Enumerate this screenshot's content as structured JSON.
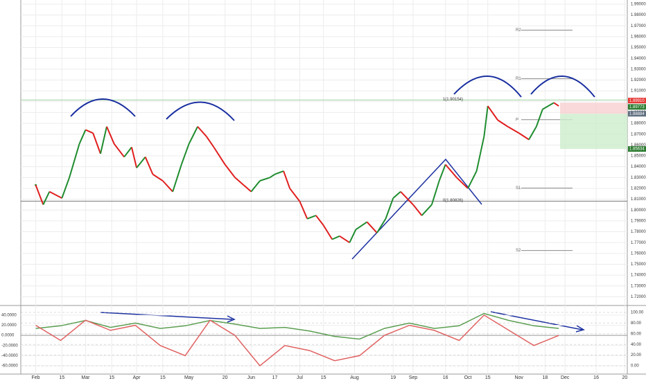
{
  "chart_data": [
    {
      "type": "line",
      "xlim": [
        -1.2,
        47.5
      ],
      "ylim": [
        1.7126,
        1.9938
      ],
      "grid": true,
      "xticks": [
        {
          "value": 0,
          "label": "Feb"
        },
        {
          "value": 2.1,
          "label": "15"
        },
        {
          "value": 4,
          "label": "Mar"
        },
        {
          "value": 6.1,
          "label": "15"
        },
        {
          "value": 8.1,
          "label": "Apr"
        },
        {
          "value": 10.2,
          "label": "15"
        },
        {
          "value": 12.3,
          "label": "May"
        },
        {
          "value": 15.2,
          "label": "20"
        },
        {
          "value": 17.3,
          "label": "Jun"
        },
        {
          "value": 19.2,
          "label": "17"
        },
        {
          "value": 21.2,
          "label": "Jul"
        },
        {
          "value": 23.1,
          "label": "15"
        },
        {
          "value": 25.6,
          "label": "Aug"
        },
        {
          "value": 28.7,
          "label": "19"
        },
        {
          "value": 30.3,
          "label": "Sep"
        },
        {
          "value": 32.9,
          "label": "16"
        },
        {
          "value": 34.7,
          "label": "Oct"
        },
        {
          "value": 36.3,
          "label": "15"
        },
        {
          "value": 38.8,
          "label": "Nov"
        },
        {
          "value": 40.9,
          "label": "18"
        },
        {
          "value": 42.5,
          "label": "Dec"
        },
        {
          "value": 45,
          "label": "16"
        },
        {
          "value": 47.3,
          "label": "20"
        }
      ],
      "yticks": [
        {
          "value": 1.72,
          "label": "1.72000"
        },
        {
          "value": 1.73,
          "label": "1.73000"
        },
        {
          "value": 1.74,
          "label": "1.74000"
        },
        {
          "value": 1.75,
          "label": "1.75000"
        },
        {
          "value": 1.76,
          "label": "1.76000"
        },
        {
          "value": 1.77,
          "label": "1.77000"
        },
        {
          "value": 1.78,
          "label": "1.78000"
        },
        {
          "value": 1.79,
          "label": "1.79000"
        },
        {
          "value": 1.8,
          "label": "1.80000"
        },
        {
          "value": 1.81,
          "label": "1.81000"
        },
        {
          "value": 1.82,
          "label": "1.82000"
        },
        {
          "value": 1.83,
          "label": "1.83000"
        },
        {
          "value": 1.84,
          "label": "1.84000"
        },
        {
          "value": 1.85,
          "label": "1.85000"
        },
        {
          "value": 1.86,
          "label": "1.86000"
        },
        {
          "value": 1.87,
          "label": "1.87000"
        },
        {
          "value": 1.88,
          "label": "1.88000"
        },
        {
          "value": 1.89,
          "label": "1.89000"
        },
        {
          "value": 1.9,
          "label": "1.90000"
        },
        {
          "value": 1.91,
          "label": "1.91000"
        },
        {
          "value": 1.92,
          "label": "1.92000"
        },
        {
          "value": 1.93,
          "label": "1.93000"
        },
        {
          "value": 1.94,
          "label": "1.94000"
        },
        {
          "value": 1.95,
          "label": "1.95000"
        },
        {
          "value": 1.96,
          "label": "1.96000"
        },
        {
          "value": 1.97,
          "label": "1.97000"
        },
        {
          "value": 1.98,
          "label": "1.98000"
        },
        {
          "value": 1.99,
          "label": "1.99000"
        }
      ],
      "x": [
        0,
        0.6,
        1.1,
        2.1,
        2.7,
        3.5,
        4,
        4.6,
        5.2,
        5.7,
        6.3,
        7.1,
        7.7,
        8.1,
        8.8,
        9.4,
        10.2,
        11,
        11.7,
        12.3,
        13,
        13.7,
        14.3,
        15.2,
        16,
        16.7,
        17.3,
        18,
        18.8,
        19.2,
        19.9,
        20.4,
        21.2,
        21.8,
        22.5,
        23.1,
        23.8,
        24.4,
        25.2,
        25.7,
        26.6,
        27.4,
        28.1,
        28.7,
        29.3,
        30.3,
        31,
        31.8,
        32.4,
        32.9,
        33.8,
        34.7,
        35.4,
        36,
        36.3,
        37.1,
        37.9,
        38.8,
        39.6,
        40.2,
        40.7,
        41.6,
        42
      ],
      "values": [
        1.823,
        1.805,
        1.817,
        1.811,
        1.83,
        1.861,
        1.874,
        1.871,
        1.852,
        1.877,
        1.861,
        1.849,
        1.858,
        1.839,
        1.849,
        1.833,
        1.827,
        1.817,
        1.842,
        1.861,
        1.877,
        1.868,
        1.858,
        1.842,
        1.83,
        1.823,
        1.817,
        1.827,
        1.83,
        1.833,
        1.836,
        1.82,
        1.808,
        1.792,
        1.795,
        1.786,
        1.773,
        1.776,
        1.77,
        1.782,
        1.789,
        1.779,
        1.792,
        1.811,
        1.817,
        1.805,
        1.795,
        1.805,
        1.827,
        1.842,
        1.83,
        1.82,
        1.836,
        1.868,
        1.896,
        1.883,
        1.877,
        1.871,
        1.865,
        1.877,
        1.893,
        1.899,
        1.896
      ],
      "up_color": "#1e8c2e",
      "down_color": "#e01e1e",
      "levels": [
        {
          "label": "1(1.90154)",
          "value": 1.90154,
          "color": "#9ccf9c"
        },
        {
          "label": "0(1.80826)",
          "value": 1.80826,
          "color": "#777777"
        }
      ],
      "pivots": [
        {
          "label": "R2",
          "value": 1.966
        },
        {
          "label": "R1",
          "value": 1.9212
        },
        {
          "label": "P",
          "value": 1.8834
        },
        {
          "label": "S1",
          "value": 1.8203
        },
        {
          "label": "S2",
          "value": 1.7627
        }
      ],
      "price_tags": [
        {
          "value": 1.8991,
          "label": "1.89910",
          "color": "#e53935"
        },
        {
          "value": 1.89773,
          "label": "1.89773",
          "color": "#2e7d32"
        },
        {
          "value": 1.88884,
          "label": "1.88884",
          "color": "#607080"
        },
        {
          "value": 1.85634,
          "label": "1.85634",
          "color": "#2e7d32"
        }
      ]
    },
    {
      "type": "line",
      "xlim": [
        -1.2,
        47.5
      ],
      "ylim": [
        -76.4,
        53.6
      ],
      "y2lim": [
        -15.6,
        107.8
      ],
      "yticks": [
        {
          "value": 40,
          "label": "40.0000"
        },
        {
          "value": 20,
          "label": "20.0000"
        },
        {
          "value": 0,
          "label": "0.0000"
        },
        {
          "value": -20,
          "label": "-20.0000"
        },
        {
          "value": -40,
          "label": "-40.0000"
        },
        {
          "value": -60,
          "label": "-60.0000"
        }
      ],
      "y2ticks": [
        {
          "value": 100,
          "label": "100.00"
        },
        {
          "value": 80,
          "label": "80.00"
        },
        {
          "value": 60,
          "label": "60.00"
        },
        {
          "value": 40,
          "label": "40.00"
        },
        {
          "value": 20,
          "label": "20.00"
        },
        {
          "value": 0,
          "label": "0.00"
        }
      ],
      "x": [
        0,
        2,
        4,
        6,
        8,
        10,
        12,
        14,
        16,
        18,
        20,
        22,
        24,
        26,
        28,
        30,
        32,
        34,
        36,
        38,
        40,
        42
      ],
      "series": [
        {
          "color": "#5a9e50",
          "axis": "y2",
          "values": [
            70,
            75,
            85,
            72,
            80,
            70,
            75,
            85,
            78,
            70,
            72,
            65,
            55,
            50,
            70,
            80,
            70,
            75,
            98,
            85,
            75,
            70
          ]
        },
        {
          "color": "#e06060",
          "values": [
            20,
            -10,
            30,
            10,
            20,
            -20,
            -40,
            30,
            0,
            -60,
            -20,
            -30,
            -50,
            -40,
            0,
            20,
            10,
            -10,
            40,
            10,
            -20,
            0
          ]
        }
      ]
    }
  ]
}
